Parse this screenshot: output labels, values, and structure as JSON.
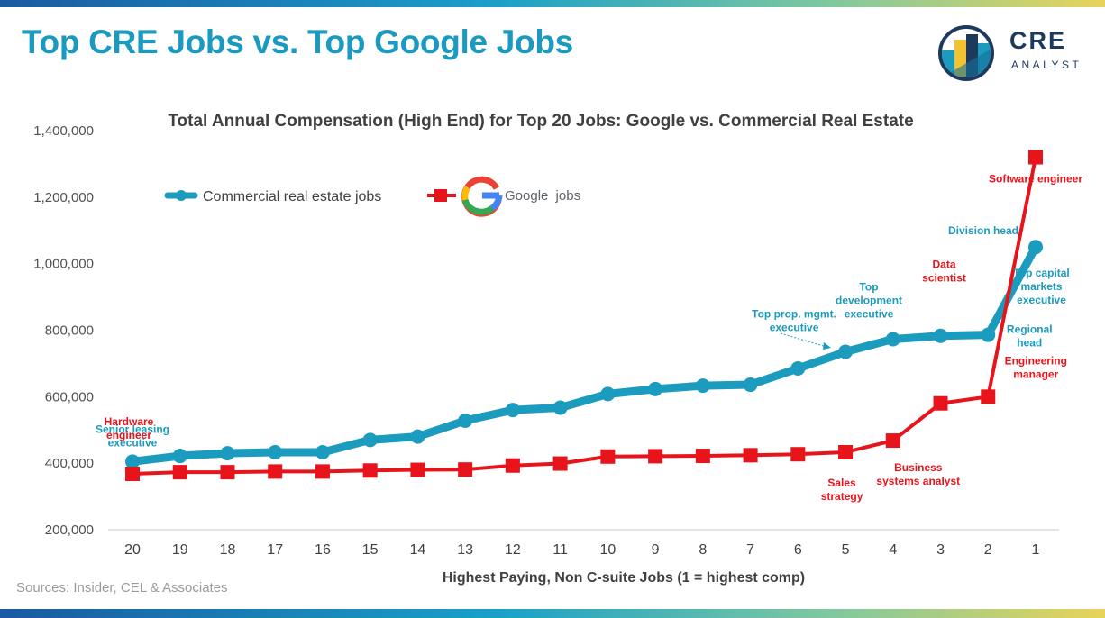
{
  "header": {
    "title": "Top CRE Jobs vs. Top Google Jobs",
    "logo_line1": "CRE",
    "logo_line2": "ANALYST"
  },
  "footer": {
    "sources": "Sources: Insider, CEL & Associates"
  },
  "colors": {
    "title": "#1a9ac1",
    "cre_series": "#1b9bbd",
    "google_series": "#e8141b",
    "logo_text": "#1d3a5e",
    "axis": "#c8c8c8"
  },
  "legend": {
    "cre_label": "Commercial real estate jobs",
    "google_label": "Google",
    "google_suffix": "jobs",
    "google_letter": "G"
  },
  "chart_data": {
    "type": "line",
    "title": "Total Annual Compensation (High End) for Top 20 Jobs: Google vs. Commercial Real Estate",
    "xlabel": "Highest Paying, Non C-suite Jobs (1 = highest comp)",
    "ylabel": "",
    "x": [
      "20",
      "19",
      "18",
      "17",
      "16",
      "15",
      "14",
      "13",
      "12",
      "11",
      "10",
      "9",
      "8",
      "7",
      "6",
      "5",
      "4",
      "3",
      "2",
      "1"
    ],
    "ylim": [
      200000,
      1400000
    ],
    "yticks": [
      "200,000",
      "400,000",
      "600,000",
      "800,000",
      "1,000,000",
      "1,200,000",
      "1,400,000"
    ],
    "ytick_values": [
      200000,
      400000,
      600000,
      800000,
      1000000,
      1200000,
      1400000
    ],
    "legend_position": "top-left",
    "grid": false,
    "series": [
      {
        "name": "Commercial real estate jobs",
        "values": [
          405000,
          422000,
          430000,
          433000,
          433000,
          470000,
          480000,
          528000,
          560000,
          567000,
          608000,
          623000,
          633000,
          636000,
          685000,
          735000,
          773000,
          783000,
          786000,
          1050000
        ]
      },
      {
        "name": "Google jobs",
        "values": [
          368000,
          373000,
          373000,
          375000,
          375000,
          378000,
          380000,
          381000,
          393000,
          399000,
          420000,
          421000,
          422000,
          424000,
          427000,
          433000,
          468000,
          580000,
          600000,
          1320000
        ]
      }
    ],
    "annotations": {
      "cre": [
        {
          "text": "Senior leasing executive",
          "lines": [
            "Senior leasing",
            "executive"
          ],
          "x": "20"
        },
        {
          "text": "Top prop. mgmt. executive",
          "lines": [
            "Top prop. mgmt.",
            "executive"
          ],
          "x": "5",
          "arrow": true
        },
        {
          "text": "Top development executive",
          "lines": [
            "Top",
            "development",
            "executive"
          ],
          "x": "5"
        },
        {
          "text": "Top capital markets executive",
          "lines": [
            "Top capital",
            "markets",
            "executive"
          ],
          "x": "3"
        },
        {
          "text": "Division head",
          "lines": [
            "Division head"
          ],
          "x": "1"
        },
        {
          "text": "Regional head",
          "lines": [
            "Regional",
            "head"
          ],
          "x": "2"
        }
      ],
      "google": [
        {
          "text": "Software engineer",
          "lines": [
            "Software engineer"
          ],
          "x": "1"
        },
        {
          "text": "Hardware engineer",
          "lines": [
            "Hardware",
            "engineer"
          ],
          "x": "20"
        },
        {
          "text": "Sales strategy",
          "lines": [
            "Sales",
            "strategy"
          ],
          "x": "5"
        },
        {
          "text": "Data scientist",
          "lines": [
            "Data",
            "scientist"
          ],
          "x": "3"
        },
        {
          "text": "Business systems analyst",
          "lines": [
            "Business",
            "systems analyst"
          ],
          "x": "4"
        },
        {
          "text": "Engineering manager",
          "lines": [
            "Engineering",
            "manager"
          ],
          "x": "2"
        }
      ]
    }
  }
}
